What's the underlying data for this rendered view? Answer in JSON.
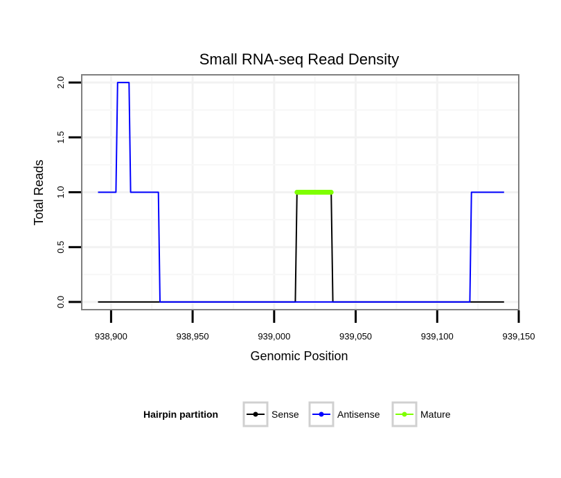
{
  "chart_data": {
    "type": "line",
    "title": "Small RNA-seq Read Density",
    "xlabel": "Genomic Position",
    "ylabel": "Total Reads",
    "xlim": [
      938882,
      939150
    ],
    "ylim": [
      -0.07,
      2.07
    ],
    "x_ticks": [
      938900,
      938950,
      939000,
      939050,
      939100,
      939150
    ],
    "x_tick_labels": [
      "938,900",
      "938,950",
      "939,000",
      "939,050",
      "939,100",
      "939,150"
    ],
    "y_ticks": [
      0.0,
      0.5,
      1.0,
      1.5,
      2.0
    ],
    "y_tick_labels": [
      "0.0",
      "0.5",
      "1.0",
      "1.5",
      "2.0"
    ],
    "grid": true,
    "legend": {
      "title": "Hairpin partition",
      "position": "bottom",
      "entries": [
        "Sense",
        "Antisense",
        "Mature"
      ]
    },
    "series": [
      {
        "name": "Sense",
        "color": "#000000",
        "x": [
          938892,
          939013,
          939014,
          939035,
          939036,
          939141
        ],
        "y": [
          0,
          0,
          1,
          1,
          0,
          0
        ]
      },
      {
        "name": "Antisense",
        "color": "#0000ff",
        "x": [
          938892,
          938903,
          938904,
          938911,
          938912,
          938929,
          938930,
          939120,
          939121,
          939141
        ],
        "y": [
          1,
          1,
          2,
          2,
          1,
          1,
          0,
          0,
          1,
          1
        ]
      },
      {
        "name": "Mature",
        "color": "#7fff00",
        "x": [
          939014,
          939035
        ],
        "y": [
          1,
          1
        ]
      }
    ]
  }
}
